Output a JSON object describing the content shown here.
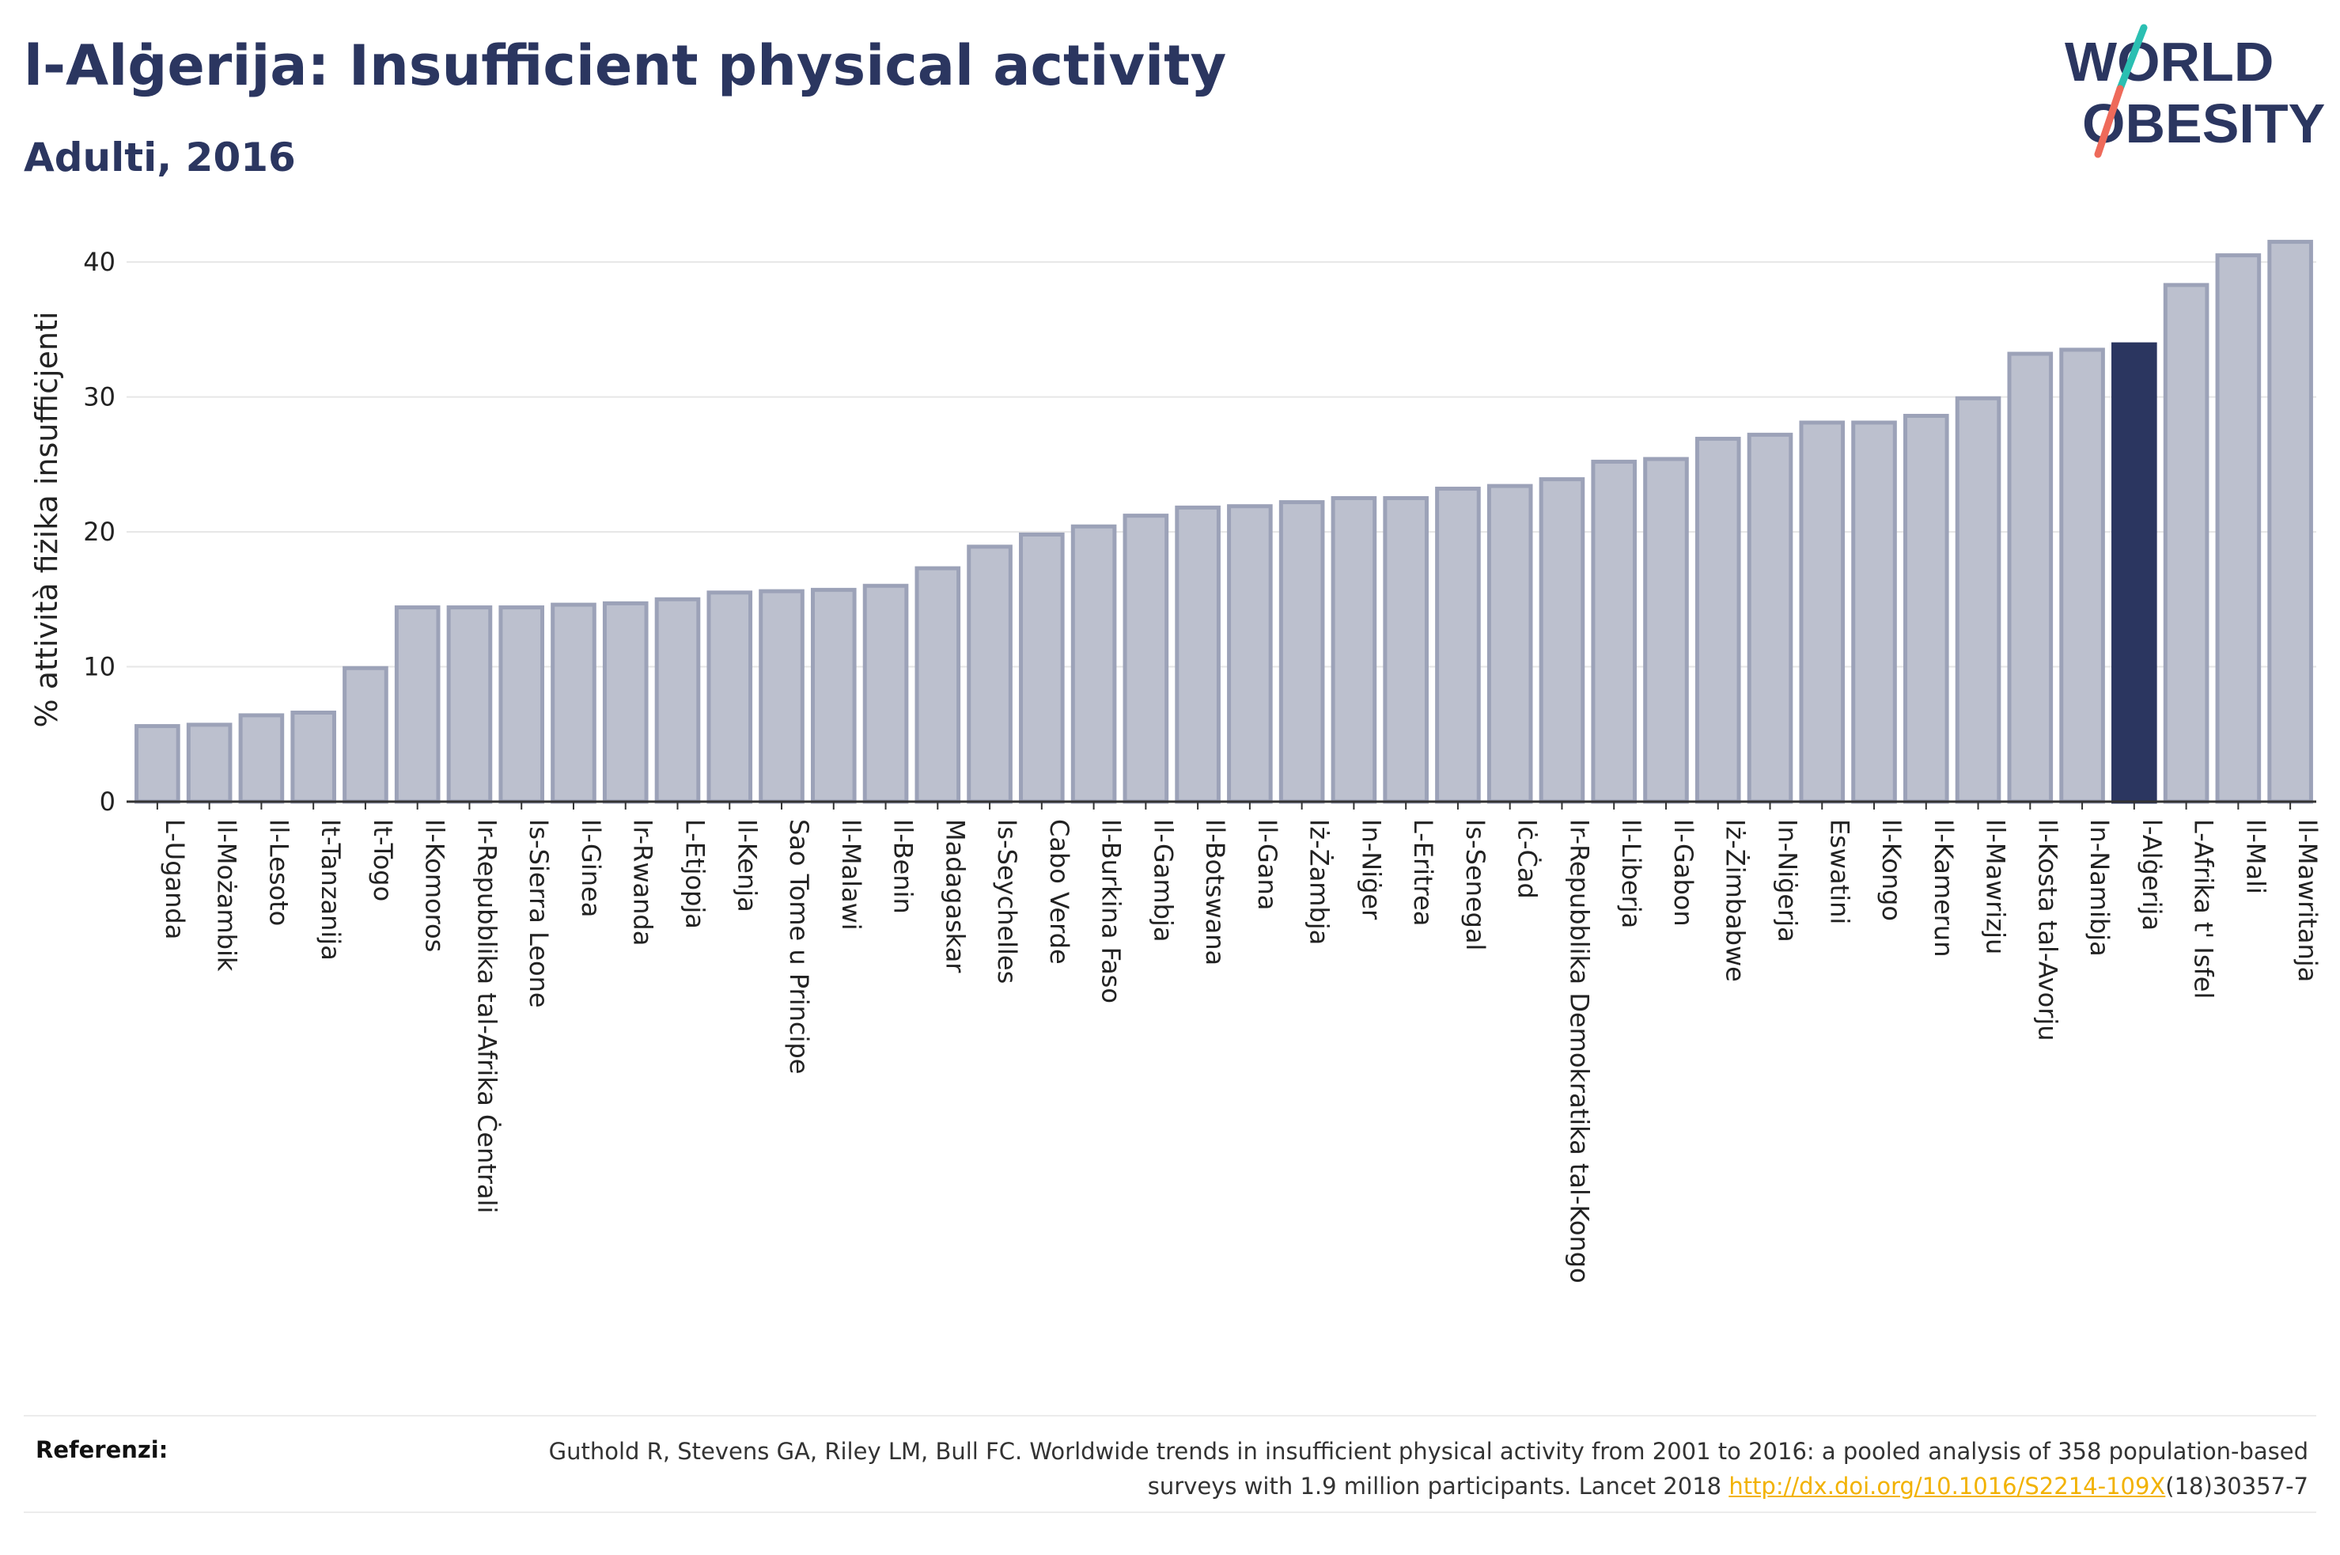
{
  "title": "l-Alġerija: Insufficient physical activity",
  "subtitle": "Adulti, 2016",
  "logo": {
    "line1": "WORLD",
    "line2": "OBESITY",
    "text_color": "#2b3660",
    "slash_color_top": "#2bbfb2",
    "slash_color_bottom": "#ee6a5a"
  },
  "colors": {
    "bar_fill": "#bcc0ce",
    "bar_stroke": "#9ca2b8",
    "highlight_fill": "#2b3660",
    "axis": "#333333",
    "grid": "#e6e6e6",
    "text": "#222222"
  },
  "chart_data": {
    "type": "bar",
    "ylabel": "% attività fiżika insuffiċjenti",
    "xlabel": "",
    "ylim": [
      0,
      43
    ],
    "yticks": [
      0,
      10,
      20,
      30,
      40
    ],
    "grid": true,
    "highlight": "l-Alġerija",
    "categories": [
      "L-Uganda",
      "Il-Możambik",
      "Il-Lesoto",
      "It-Tanzanija",
      "It-Togo",
      "Il-Komoros",
      "Ir-Repubblika tal-Afrika Ċentrali",
      "Is-Sierra Leone",
      "Il-Ginea",
      "Ir-Rwanda",
      "L-Etjopja",
      "Il-Kenja",
      "Sao Tome u Principe",
      "Il-Malawi",
      "Il-Benin",
      "Madagaskar",
      "Is-Seychelles",
      "Cabo Verde",
      "Il-Burkina Faso",
      "Il-Gambja",
      "Il-Botswana",
      "Il-Gana",
      "Iż-Żambja",
      "In-Niġer",
      "L-Eritrea",
      "Is-Senegal",
      "Iċ-Ċad",
      "Ir-Repubblika Demokratika tal-Kongo",
      "Il-Liberja",
      "Il-Gabon",
      "Iż-Żimbabwe",
      "In-Niġerja",
      "Eswatini",
      "Il-Kongo",
      "Il-Kamerun",
      "Il-Mawrizju",
      "Il-Kosta tal-Avorju",
      "In-Namibja",
      "l-Alġerija",
      "L-Afrika t' Isfel",
      "Il-Mali",
      "Il-Mawritanja"
    ],
    "values": [
      5.6,
      5.7,
      6.4,
      6.6,
      9.9,
      14.4,
      14.4,
      14.4,
      14.6,
      14.7,
      15.0,
      15.5,
      15.6,
      15.7,
      16.0,
      17.3,
      18.9,
      19.8,
      20.4,
      21.2,
      21.8,
      21.9,
      22.2,
      22.5,
      22.5,
      23.2,
      23.4,
      23.9,
      25.2,
      25.4,
      26.9,
      27.2,
      28.1,
      28.1,
      28.6,
      29.9,
      33.2,
      33.5,
      33.9,
      38.3,
      40.5,
      41.5
    ]
  },
  "references": {
    "label": "Referenzi:",
    "text_before": "Guthold R, Stevens GA, Riley LM, Bull FC. Worldwide trends in insufficient physical activity from 2001 to 2016: a pooled analysis of 358 population-based surveys with 1.9 million participants. Lancet 2018 ",
    "link": "http://dx.doi.org/10.1016/S2214-109X",
    "text_after": "(18)30357-7"
  }
}
